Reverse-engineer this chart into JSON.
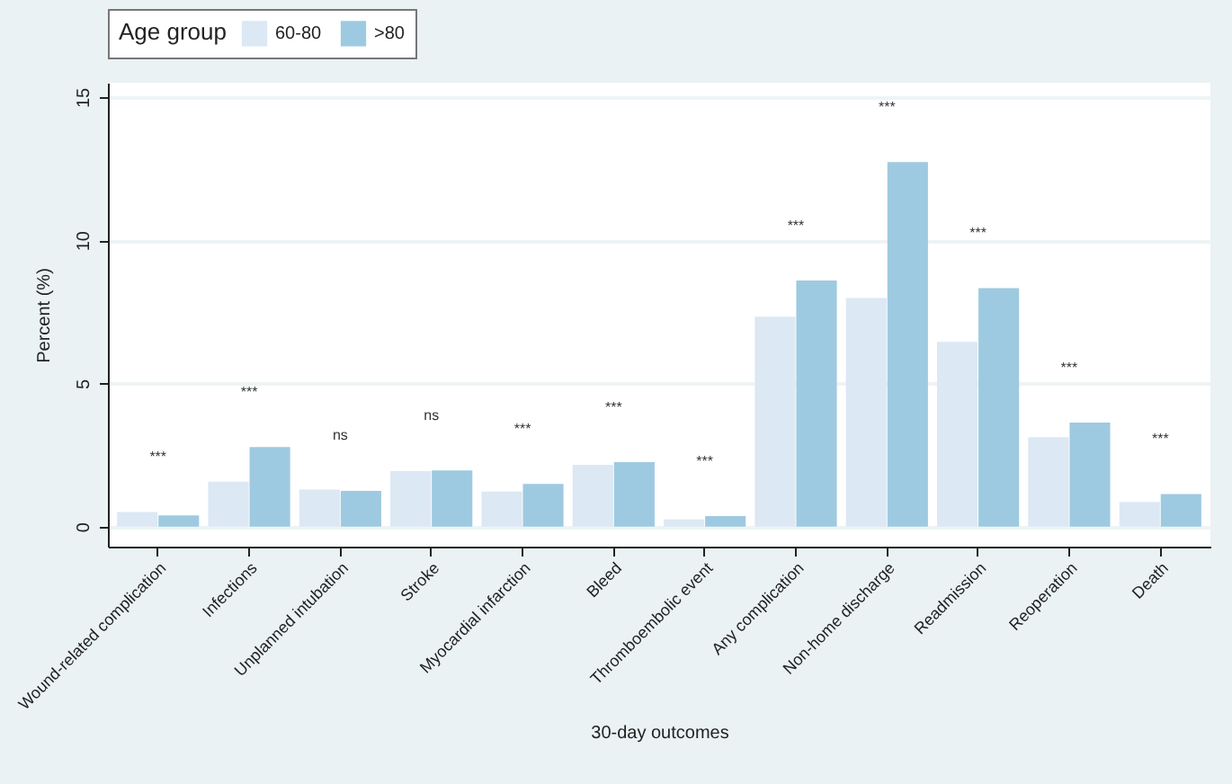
{
  "chart_data": {
    "type": "bar",
    "xlabel": "30-day outcomes",
    "ylabel": "Percent (%)",
    "legend_title": "Age group",
    "legend": "top",
    "grid": "y",
    "categories": [
      "Wound-related complication",
      "Infections",
      "Unplanned intubation",
      "Stroke",
      "Myocardial infarction",
      "Bleed",
      "Thromboembolic event",
      "Any complication",
      "Non-home discharge",
      "Readmission",
      "Reoperation",
      "Death"
    ],
    "series": [
      {
        "name": "60-80",
        "color": "#dce8f4",
        "values": [
          0.51,
          1.57,
          1.29,
          1.94,
          1.22,
          2.16,
          0.25,
          7.33,
          7.98,
          6.45,
          3.12,
          0.86
        ]
      },
      {
        "name": ">80",
        "color": "#9ecae1",
        "values": [
          0.39,
          2.78,
          1.25,
          1.96,
          1.49,
          2.25,
          0.37,
          8.59,
          12.73,
          8.33,
          3.63,
          1.14
        ]
      }
    ],
    "ylim": [
      -0.7,
      15.5
    ],
    "yticks": [
      0,
      5,
      10,
      15
    ],
    "annotations": [
      "***",
      "***",
      "ns",
      "ns",
      "***",
      "***",
      "***",
      "***",
      "***",
      "***",
      "***",
      "***"
    ]
  }
}
